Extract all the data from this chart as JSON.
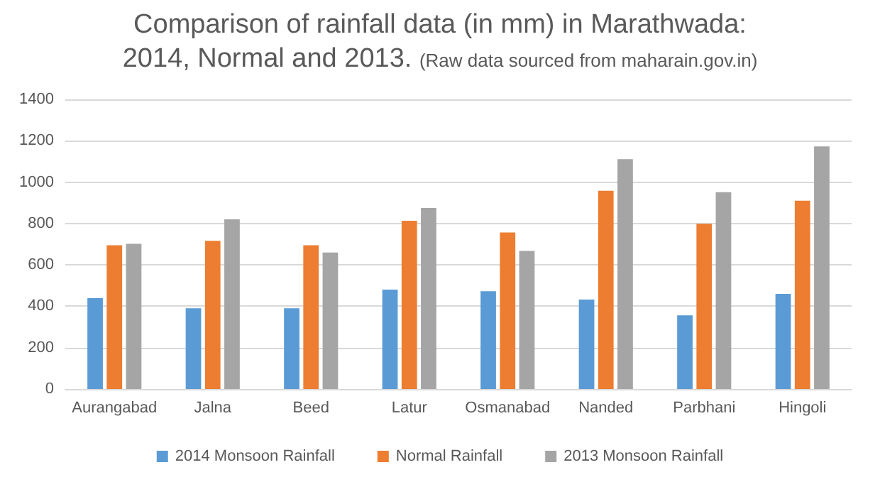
{
  "chart_data": {
    "type": "bar",
    "title": "Comparison of rainfall data (in mm) in Marathwada:\n2014, Normal and 2013.",
    "subtitle": "(Raw data sourced from maharain.gov.in)",
    "categories": [
      "Aurangabad",
      "Jalna",
      "Beed",
      "Latur",
      "Osmanabad",
      "Nanded",
      "Parbhani",
      "Hingoli"
    ],
    "series": [
      {
        "name": "2014 Monsoon Rainfall",
        "color": "#5b9bd5",
        "values": [
          439,
          390,
          390,
          480,
          473,
          432,
          356,
          460
        ]
      },
      {
        "name": "Normal Rainfall",
        "color": "#ed7d31",
        "values": [
          695,
          716,
          695,
          813,
          757,
          958,
          799,
          910
        ]
      },
      {
        "name": "2013 Monsoon Rainfall",
        "color": "#a5a5a5",
        "values": [
          702,
          820,
          660,
          875,
          667,
          1111,
          951,
          1173
        ]
      }
    ],
    "ylim": [
      0,
      1400
    ],
    "yticks": [
      0,
      200,
      400,
      600,
      800,
      1000,
      1200,
      1400
    ],
    "grid": "y",
    "legend": "bottom"
  }
}
